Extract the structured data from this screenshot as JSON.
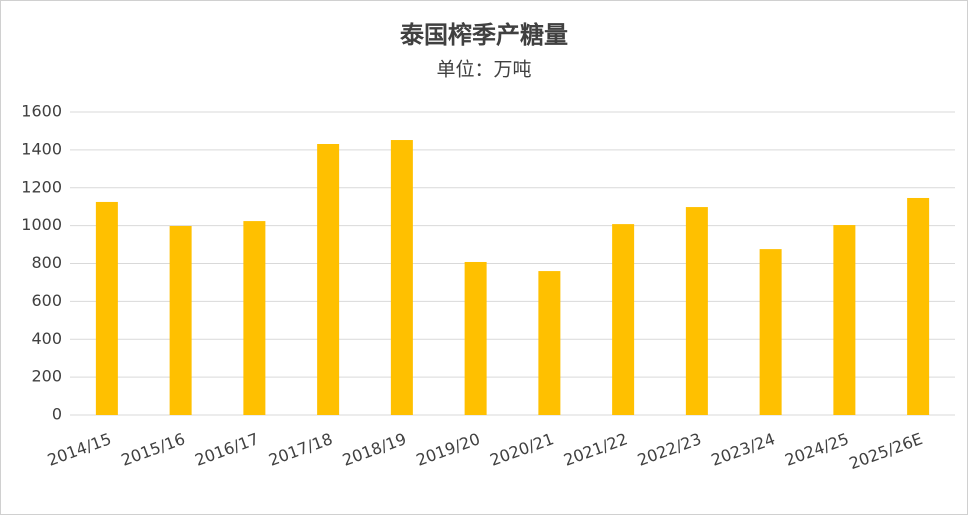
{
  "chart_data": {
    "type": "bar",
    "title": "泰国榨季产糖量",
    "subtitle": "单位：万吨",
    "categories": [
      "2014/15",
      "2015/16",
      "2016/17",
      "2017/18",
      "2018/19",
      "2019/20",
      "2020/21",
      "2021/22",
      "2022/23",
      "2023/24",
      "2024/25",
      "2025/26E"
    ],
    "values": [
      1125,
      998,
      1024,
      1431,
      1452,
      808,
      760,
      1008,
      1098,
      876,
      1003,
      1146
    ],
    "color": "#ffc000",
    "ylim": [
      0,
      1600
    ],
    "yticks": [
      0,
      200,
      400,
      600,
      800,
      1000,
      1200,
      1400,
      1600
    ],
    "grid": true
  }
}
